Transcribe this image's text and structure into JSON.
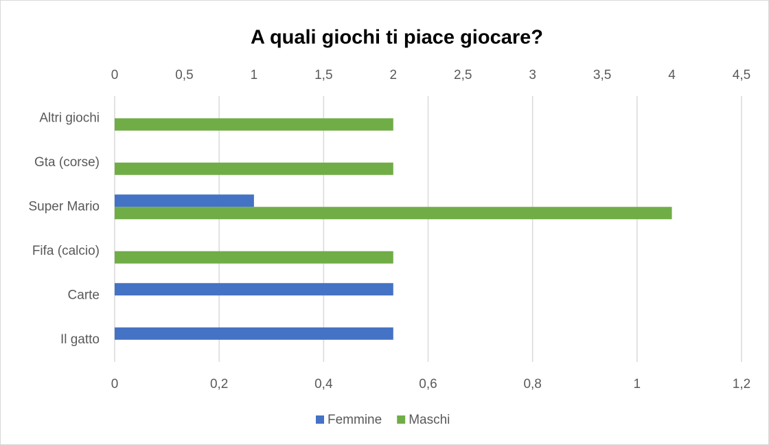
{
  "chart_data": {
    "type": "hbar",
    "title": "A quali giochi ti piace giocare?",
    "categories": [
      "Il gatto",
      "Carte",
      "Fifa (calcio)",
      "Super Mario",
      "Gta (corse)",
      "Altri giochi"
    ],
    "series": [
      {
        "name": "Femmine",
        "color": "#4472c4",
        "axis": "x2",
        "values": [
          2,
          2,
          0,
          1,
          0,
          0
        ]
      },
      {
        "name": "Maschi",
        "color": "#70ad47",
        "axis": "x2",
        "values": [
          0,
          0,
          2,
          4,
          2,
          2
        ]
      }
    ],
    "xlim": [
      0,
      1.2
    ],
    "xticks": [
      0,
      {
        "value": 0.2,
        "label": "0,2"
      },
      {
        "value": 0.4,
        "label": "0,4"
      },
      {
        "value": 0.6,
        "label": "0,6"
      },
      {
        "value": 0.8,
        "label": "0,8"
      },
      1,
      {
        "value": 1.2,
        "label": "1,2"
      }
    ],
    "x2lim": [
      0,
      4.5
    ],
    "x2ticks": [
      0,
      {
        "value": 0.5,
        "label": "0,5"
      },
      1,
      {
        "value": 1.5,
        "label": "1,5"
      },
      2,
      {
        "value": 2.5,
        "label": "2,5"
      },
      3,
      {
        "value": 3.5,
        "label": "3,5"
      },
      4,
      {
        "value": 4.5,
        "label": "4,5"
      }
    ],
    "grid": true,
    "legend": "bottom"
  }
}
